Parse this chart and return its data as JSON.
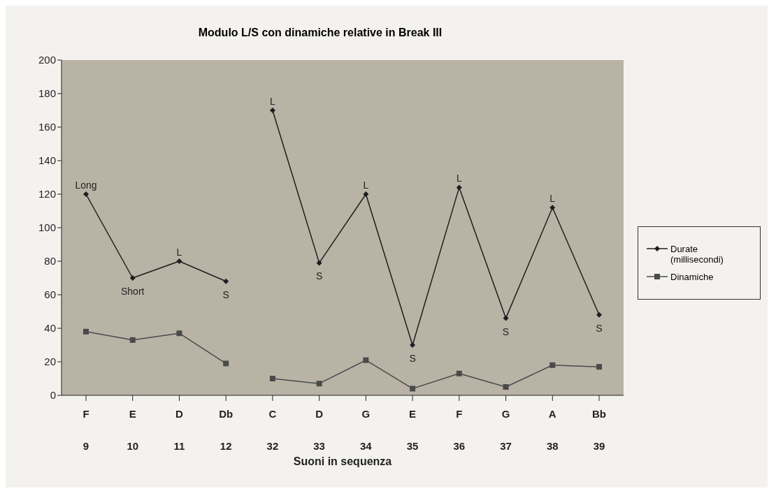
{
  "chart_data": {
    "type": "line",
    "title": "Modulo L/S con dinamiche relative in Break III",
    "xlabel": "Suoni in sequenza",
    "categories": [
      "F\n9",
      "E\n10",
      "D\n11",
      "Db\n12",
      "C\n32",
      "D\n33",
      "G\n34",
      "E\n35",
      "F\n36",
      "G\n37",
      "A\n38",
      "Bb\n39"
    ],
    "series": [
      {
        "name": "Durate (millisecondi)",
        "color": "#1e1e1e",
        "marker": "diamond",
        "values": [
          120,
          70,
          80,
          68,
          null,
          null,
          null,
          null,
          null,
          null,
          null,
          null
        ]
      },
      {
        "color": "#1e1e1e",
        "marker": "diamond",
        "values": [
          null,
          null,
          null,
          null,
          170,
          79,
          120,
          30,
          124,
          46,
          112,
          48
        ]
      },
      {
        "name": "Dinamiche",
        "color": "#4a4a4a",
        "marker": "square",
        "values": [
          38,
          33,
          37,
          19,
          null,
          null,
          null,
          null,
          null,
          null,
          null,
          null
        ]
      },
      {
        "color": "#4a4a4a",
        "marker": "square",
        "values": [
          null,
          null,
          null,
          null,
          10,
          7,
          21,
          4,
          13,
          5,
          18,
          17
        ]
      }
    ],
    "ylim": [
      0,
      200
    ],
    "yticks": [
      0,
      20,
      40,
      60,
      80,
      100,
      120,
      140,
      160,
      180,
      200
    ],
    "grid": false,
    "legend": "right",
    "annotations": [
      {
        "text": "Long",
        "x": "F\n9",
        "y": 120
      },
      {
        "text": "Short",
        "x": "E\n10",
        "y": 70
      },
      {
        "text": "L",
        "x": "D\n11",
        "y": 80
      },
      {
        "text": "S",
        "x": "Db\n12",
        "y": 68
      },
      {
        "text": "L",
        "x": "C\n32",
        "y": 170
      },
      {
        "text": "S",
        "x": "D\n33",
        "y": 79
      },
      {
        "text": "L",
        "x": "G\n34",
        "y": 120
      },
      {
        "text": "S",
        "x": "E\n35",
        "y": 30
      },
      {
        "text": "L",
        "x": "F\n36",
        "y": 124
      },
      {
        "text": "S",
        "x": "G\n37",
        "y": 46
      },
      {
        "text": "L",
        "x": "A\n38",
        "y": 112
      },
      {
        "text": "S",
        "x": "Bb\n39",
        "y": 48
      }
    ]
  }
}
